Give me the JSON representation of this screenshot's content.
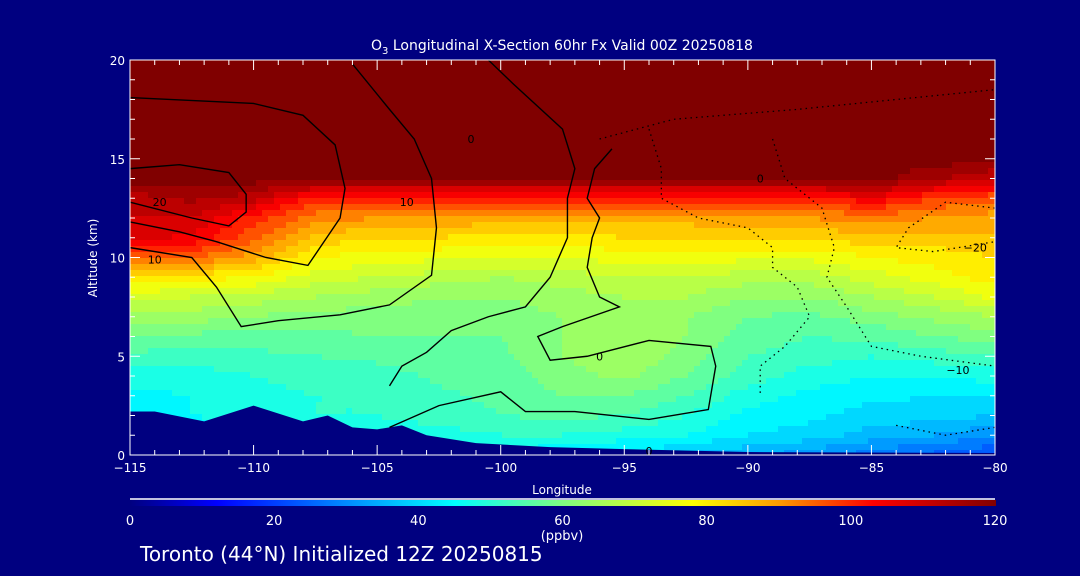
{
  "chart_data": {
    "type": "heatmap",
    "title": "O3 Longitudinal X-Section 60hr  Fx Valid 00Z 20250818",
    "title_parts": {
      "pre": "O",
      "sub": "3",
      "post": " Longitudinal X-Section 60hr  Fx Valid 00Z 20250818"
    },
    "xlabel": "Longitude",
    "ylabel": "Altitude (km)",
    "xlim": [
      -115,
      -80
    ],
    "ylim": [
      0,
      20
    ],
    "x_ticks": [
      -115,
      -110,
      -105,
      -100,
      -95,
      -90,
      -85,
      -80
    ],
    "x_tick_labels": [
      "−115",
      "−110",
      "−105",
      "−100",
      "−95",
      "−90",
      "−85",
      "−80"
    ],
    "y_ticks": [
      0,
      5,
      10,
      15,
      20
    ],
    "y_tick_labels": [
      "0",
      "5",
      "10",
      "15",
      "20"
    ],
    "colorbar": {
      "label": "(ppbv)",
      "range": [
        0,
        120
      ],
      "ticks": [
        0,
        20,
        40,
        60,
        80,
        100,
        120
      ],
      "tick_labels": [
        "0",
        "20",
        "40",
        "60",
        "80",
        "100",
        "120"
      ],
      "stops": [
        [
          0,
          "#000080"
        ],
        [
          12,
          "#0000ff"
        ],
        [
          45,
          "#00ffff"
        ],
        [
          60,
          "#80ff80"
        ],
        [
          78,
          "#ffff00"
        ],
        [
          90,
          "#ff9900"
        ],
        [
          103,
          "#ff0000"
        ],
        [
          120,
          "#800000"
        ]
      ]
    },
    "grid_x": [
      -115,
      -112.5,
      -110,
      -107.5,
      -105,
      -102.5,
      -100,
      -97.5,
      -95,
      -92.5,
      -90,
      -87.5,
      -85,
      -82.5,
      -80
    ],
    "grid_y": [
      0,
      1,
      2,
      3,
      4,
      5,
      6,
      7,
      8,
      9,
      10,
      11,
      12,
      13,
      14,
      15,
      16,
      17,
      18,
      19,
      20
    ],
    "values": [
      [
        38,
        40,
        42,
        44,
        45,
        45,
        45,
        42,
        40,
        38,
        35,
        32,
        28,
        25,
        22
      ],
      [
        40,
        42,
        45,
        46,
        47,
        48,
        50,
        50,
        48,
        46,
        42,
        40,
        36,
        34,
        30
      ],
      [
        44,
        46,
        48,
        50,
        50,
        52,
        54,
        55,
        54,
        50,
        45,
        43,
        40,
        40,
        38
      ],
      [
        45,
        46,
        48,
        50,
        50,
        53,
        55,
        58,
        58,
        54,
        48,
        45,
        43,
        42,
        42
      ],
      [
        48,
        48,
        50,
        52,
        52,
        55,
        56,
        60,
        63,
        58,
        52,
        48,
        46,
        46,
        48
      ],
      [
        53,
        52,
        53,
        54,
        55,
        56,
        57,
        62,
        66,
        60,
        54,
        52,
        50,
        52,
        54
      ],
      [
        58,
        57,
        56,
        57,
        58,
        58,
        58,
        62,
        66,
        62,
        56,
        54,
        55,
        58,
        60
      ],
      [
        65,
        64,
        62,
        60,
        60,
        60,
        60,
        62,
        64,
        62,
        58,
        57,
        60,
        63,
        66
      ],
      [
        72,
        70,
        68,
        66,
        64,
        62,
        62,
        64,
        66,
        66,
        62,
        62,
        66,
        70,
        75
      ],
      [
        82,
        80,
        78,
        72,
        70,
        68,
        66,
        68,
        70,
        70,
        68,
        68,
        72,
        76,
        80
      ],
      [
        95,
        95,
        88,
        78,
        76,
        75,
        74,
        74,
        76,
        76,
        75,
        75,
        78,
        80,
        82
      ],
      [
        108,
        105,
        95,
        85,
        82,
        82,
        80,
        80,
        82,
        82,
        82,
        82,
        85,
        84,
        85
      ],
      [
        110,
        110,
        100,
        92,
        90,
        90,
        88,
        88,
        88,
        88,
        90,
        90,
        92,
        90,
        88
      ],
      [
        112,
        115,
        112,
        100,
        100,
        100,
        100,
        100,
        100,
        100,
        100,
        100,
        105,
        98,
        95
      ],
      [
        120,
        120,
        120,
        120,
        120,
        120,
        120,
        120,
        120,
        120,
        120,
        120,
        120,
        115,
        110
      ],
      [
        120,
        120,
        120,
        120,
        120,
        120,
        120,
        120,
        120,
        120,
        120,
        120,
        120,
        120,
        120
      ],
      [
        120,
        120,
        120,
        120,
        120,
        120,
        120,
        120,
        120,
        120,
        120,
        120,
        120,
        120,
        120
      ],
      [
        120,
        120,
        120,
        120,
        120,
        120,
        120,
        120,
        120,
        120,
        120,
        120,
        120,
        120,
        120
      ],
      [
        120,
        120,
        120,
        120,
        120,
        120,
        120,
        120,
        120,
        120,
        120,
        120,
        120,
        120,
        120
      ],
      [
        120,
        120,
        120,
        120,
        120,
        120,
        120,
        120,
        120,
        120,
        120,
        120,
        120,
        120,
        120
      ],
      [
        120,
        120,
        120,
        120,
        120,
        120,
        120,
        120,
        120,
        120,
        120,
        120,
        120,
        120,
        120
      ]
    ],
    "terrain": [
      [
        -115,
        2.2
      ],
      [
        -114,
        2.2
      ],
      [
        -112,
        1.7
      ],
      [
        -110,
        2.5
      ],
      [
        -108,
        1.7
      ],
      [
        -107,
        2.0
      ],
      [
        -106,
        1.4
      ],
      [
        -105,
        1.3
      ],
      [
        -104,
        1.5
      ],
      [
        -103,
        1.0
      ],
      [
        -101,
        0.6
      ],
      [
        -98,
        0.4
      ],
      [
        -95,
        0.3
      ],
      [
        -90,
        0.15
      ],
      [
        -80,
        0.1
      ]
    ],
    "contours": [
      {
        "level": 20,
        "dashed": false,
        "points": [
          [
            -115,
            14.5
          ],
          [
            -113,
            14.7
          ],
          [
            -111,
            14.3
          ],
          [
            -110.3,
            13.2
          ],
          [
            -110.3,
            12.3
          ],
          [
            -111,
            11.6
          ],
          [
            -112.5,
            12
          ],
          [
            -115,
            12.8
          ]
        ]
      },
      {
        "level": 10,
        "dashed": false,
        "points": [
          [
            -115,
            18.1
          ],
          [
            -110,
            17.8
          ],
          [
            -108,
            17.2
          ],
          [
            -106.7,
            15.7
          ],
          [
            -106.3,
            13.5
          ],
          [
            -106.5,
            12
          ],
          [
            -107.8,
            9.6
          ],
          [
            -109.5,
            10
          ],
          [
            -111.5,
            10.8
          ],
          [
            -113,
            11.3
          ],
          [
            -115,
            11.8
          ]
        ]
      },
      {
        "level": 10,
        "dashed": false,
        "points": [
          [
            -115,
            10.5
          ],
          [
            -112.5,
            10
          ],
          [
            -111.5,
            8.5
          ],
          [
            -110.5,
            6.5
          ],
          [
            -109,
            6.8
          ],
          [
            -106.5,
            7.1
          ],
          [
            -104.5,
            7.6
          ],
          [
            -102.8,
            9.1
          ],
          [
            -102.6,
            11.5
          ],
          [
            -102.8,
            14
          ],
          [
            -103.5,
            16
          ],
          [
            -104.5,
            17.5
          ],
          [
            -106,
            19.8
          ]
        ]
      },
      {
        "level": 0,
        "dashed": false,
        "points": [
          [
            -100.5,
            20
          ],
          [
            -99.5,
            18.8
          ],
          [
            -97.5,
            16.5
          ],
          [
            -97,
            14.5
          ],
          [
            -97.3,
            13
          ],
          [
            -97.3,
            11
          ],
          [
            -98,
            9
          ],
          [
            -99,
            7.5
          ],
          [
            -100.5,
            7
          ],
          [
            -102,
            6.3
          ],
          [
            -103,
            5.2
          ],
          [
            -104,
            4.5
          ],
          [
            -104.5,
            3.5
          ]
        ]
      },
      {
        "level": 0,
        "dashed": false,
        "points": [
          [
            -95.5,
            15.5
          ],
          [
            -96.2,
            14.5
          ],
          [
            -96.5,
            13
          ],
          [
            -96,
            12
          ],
          [
            -96.3,
            11
          ],
          [
            -96.5,
            9.5
          ],
          [
            -96,
            8
          ],
          [
            -95.2,
            7.5
          ],
          [
            -97.5,
            6.5
          ],
          [
            -98.5,
            6
          ],
          [
            -98,
            4.8
          ],
          [
            -96.5,
            5
          ],
          [
            -94,
            5.8
          ],
          [
            -91.5,
            5.5
          ],
          [
            -91.3,
            4.5
          ],
          [
            -91.6,
            2.3
          ],
          [
            -94,
            1.8
          ],
          [
            -97,
            2.2
          ],
          [
            -99,
            2.2
          ],
          [
            -100,
            3.2
          ],
          [
            -102.5,
            2.5
          ],
          [
            -104.5,
            1.4
          ]
        ]
      },
      {
        "level": -10,
        "dashed": true,
        "points": [
          [
            -96,
            16
          ],
          [
            -93,
            17
          ],
          [
            -88,
            17.5
          ],
          [
            -84,
            18
          ],
          [
            -80,
            18.5
          ]
        ]
      },
      {
        "level": -10,
        "dashed": true,
        "points": [
          [
            -94,
            16.5
          ],
          [
            -93.5,
            14.5
          ],
          [
            -93.5,
            13
          ],
          [
            -92,
            12
          ],
          [
            -90,
            11.5
          ],
          [
            -89,
            10.5
          ],
          [
            -89,
            9.5
          ],
          [
            -88,
            8.5
          ],
          [
            -87.5,
            7
          ],
          [
            -88.5,
            5.5
          ],
          [
            -89.5,
            4.5
          ],
          [
            -89.5,
            3
          ]
        ]
      },
      {
        "level": -10,
        "dashed": true,
        "points": [
          [
            -89,
            16
          ],
          [
            -88.5,
            14
          ],
          [
            -87,
            12.5
          ],
          [
            -86.5,
            10.5
          ],
          [
            -86.8,
            9
          ],
          [
            -86,
            7.5
          ],
          [
            -85,
            5.5
          ],
          [
            -83,
            5
          ],
          [
            -80,
            4.5
          ]
        ]
      },
      {
        "level": -20,
        "dashed": true,
        "points": [
          [
            -80,
            12.5
          ],
          [
            -82,
            12.8
          ],
          [
            -83.5,
            11.5
          ],
          [
            -84,
            10.5
          ],
          [
            -82.5,
            10.3
          ],
          [
            -80,
            10.8
          ]
        ]
      },
      {
        "level": -10,
        "dashed": true,
        "points": [
          [
            -84,
            1.5
          ],
          [
            -82,
            1
          ],
          [
            -81,
            1.2
          ],
          [
            -80,
            1.4
          ]
        ]
      }
    ],
    "contour_labels": [
      {
        "text": "20",
        "x": -113.8,
        "y": 12.8
      },
      {
        "text": "10",
        "x": -114,
        "y": 9.9
      },
      {
        "text": "10",
        "x": -103.8,
        "y": 12.8
      },
      {
        "text": "0",
        "x": -101.2,
        "y": 16
      },
      {
        "text": "0",
        "x": -96,
        "y": 5
      },
      {
        "text": "0",
        "x": -89.5,
        "y": 14
      },
      {
        "text": "−20",
        "x": -80.8,
        "y": 10.5
      },
      {
        "text": "−10",
        "x": -81.5,
        "y": 4.3
      },
      {
        "text": "0",
        "x": -94,
        "y": 0.2
      }
    ]
  },
  "footer": "Toronto (44°N) Initialized 12Z 20250815"
}
